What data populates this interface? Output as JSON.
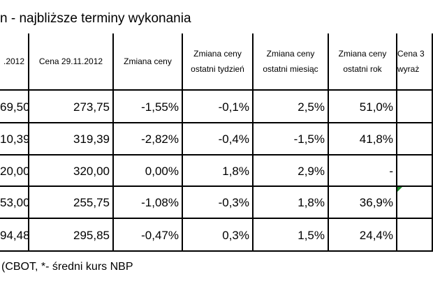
{
  "title": "n - najbliższe terminy wykonania",
  "table": {
    "header": [
      [
        ".2012"
      ],
      [
        "Cena 29.11.2012"
      ],
      [
        "Zmiana ceny"
      ],
      [
        "Zmiana ceny",
        "ostatni tydzień"
      ],
      [
        "Zmiana ceny",
        "ostatni miesiąc"
      ],
      [
        "Zmiana ceny",
        "ostatni rok"
      ],
      [
        "Cena 3",
        "wyraż"
      ]
    ],
    "rows": [
      [
        "69,50",
        "273,75",
        "-1,55%",
        "-0,1%",
        "2,5%",
        "51,0%"
      ],
      [
        "10,39",
        "319,39",
        "-2,82%",
        "-0,4%",
        "-1,5%",
        "41,8%"
      ],
      [
        "20,00",
        "320,00",
        "0,00%",
        "1,8%",
        "2,9%",
        "-"
      ],
      [
        "53,00",
        "255,75",
        "-1,08%",
        "-0,3%",
        "1,8%",
        "36,9%"
      ],
      [
        "94,48",
        "295,85",
        "-0,47%",
        "0,3%",
        "1,5%",
        "24,4%"
      ]
    ]
  },
  "footnote": "(CBOT, *- średni kurs NBP"
}
